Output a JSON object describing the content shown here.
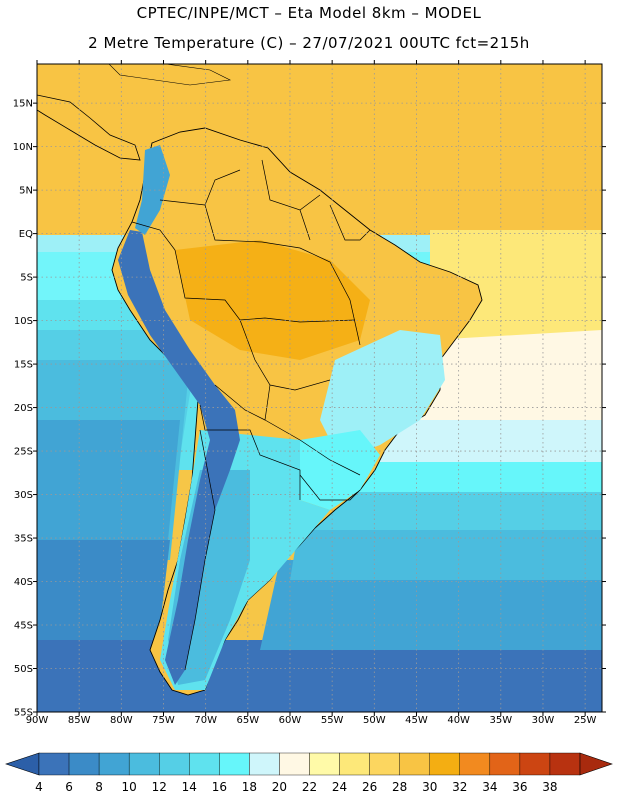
{
  "header": {
    "line1": "CPTEC/INPE/MCT –  Eta Model 8km – MODEL",
    "line2": "2 Metre Temperature (C) – 27/07/2021 00UTC fct=215h"
  },
  "map": {
    "lon_labels": [
      "90W",
      "85W",
      "80W",
      "75W",
      "70W",
      "65W",
      "60W",
      "55W",
      "50W",
      "45W",
      "40W",
      "35W",
      "30W",
      "25W"
    ],
    "lat_labels": [
      "15N",
      "10N",
      "5N",
      "EQ",
      "5S",
      "10S",
      "15S",
      "20S",
      "25S",
      "30S",
      "35S",
      "40S",
      "45S",
      "50S",
      "55S"
    ],
    "lon_values": [
      -90,
      -85,
      -80,
      -75,
      -70,
      -65,
      -60,
      -55,
      -50,
      -45,
      -40,
      -35,
      -30,
      -25
    ],
    "lat_values": [
      15,
      10,
      5,
      0,
      -5,
      -10,
      -15,
      -20,
      -25,
      -30,
      -35,
      -40,
      -45,
      -50,
      -55
    ],
    "lon_range": [
      -90,
      -23
    ],
    "lat_range": [
      -55,
      19.5
    ],
    "grid": true
  },
  "colorbar": {
    "levels": [
      "4",
      "6",
      "8",
      "10",
      "12",
      "14",
      "16",
      "18",
      "20",
      "22",
      "24",
      "26",
      "28",
      "30",
      "32",
      "34",
      "36",
      "38"
    ],
    "colors": [
      "#3b73b9",
      "#3b8bc7",
      "#41a4d4",
      "#4bbcde",
      "#55cfe6",
      "#5fe2ee",
      "#66f6fa",
      "#cff6fb",
      "#fff8e4",
      "#fffaa8",
      "#fde879",
      "#fcd65f",
      "#f8c444",
      "#f4ae12",
      "#f28a1f",
      "#e26418",
      "#cc4512",
      "#b83210"
    ],
    "under_color": "#2c5fa8",
    "over_color": "#a82a0e"
  }
}
